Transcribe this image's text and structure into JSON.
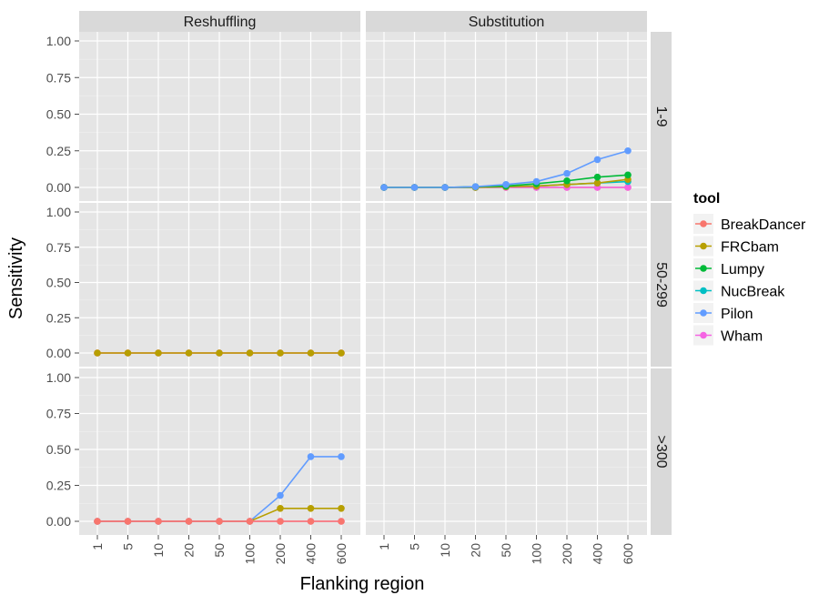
{
  "chart_data": {
    "type": "line",
    "facet_columns": [
      "Reshuffling",
      "Substitution"
    ],
    "facet_rows": [
      "1-9",
      "50-299",
      ">300"
    ],
    "categories": [
      "1",
      "5",
      "10",
      "20",
      "50",
      "100",
      "200",
      "400",
      "600"
    ],
    "xlabel": "Flanking region",
    "ylabel": "Sensitivity",
    "ylim": [
      0,
      1
    ],
    "yticks": [
      "0.00",
      "0.25",
      "0.50",
      "0.75",
      "1.00"
    ],
    "grid": true,
    "legend": {
      "title": "tool",
      "position": "right",
      "entries": [
        {
          "name": "BreakDancer",
          "color": "#F8766D"
        },
        {
          "name": "FRCbam",
          "color": "#B79F00"
        },
        {
          "name": "Lumpy",
          "color": "#00BA38"
        },
        {
          "name": "NucBreak",
          "color": "#00BFC4"
        },
        {
          "name": "Pilon",
          "color": "#619CFF"
        },
        {
          "name": "Wham",
          "color": "#F564E3"
        }
      ]
    },
    "panels": [
      {
        "row": "1-9",
        "col": "Substitution",
        "series": [
          {
            "name": "BreakDancer",
            "values": [
              0,
              0,
              0,
              0,
              0,
              0,
              0,
              0,
              0
            ]
          },
          {
            "name": "Wham",
            "values": [
              0,
              0,
              0,
              0,
              0,
              0,
              0,
              0,
              0
            ]
          },
          {
            "name": "NucBreak",
            "values": [
              0,
              0,
              0,
              0,
              0.005,
              0.01,
              0.02,
              0.03,
              0.04
            ]
          },
          {
            "name": "FRCbam",
            "values": [
              0,
              0,
              0,
              0,
              0.005,
              0.01,
              0.02,
              0.03,
              0.055
            ]
          },
          {
            "name": "Lumpy",
            "values": [
              0,
              0,
              0,
              0.005,
              0.01,
              0.025,
              0.045,
              0.07,
              0.085
            ]
          },
          {
            "name": "Pilon",
            "values": [
              0,
              0,
              0,
              0.005,
              0.02,
              0.04,
              0.095,
              0.19,
              0.25
            ]
          }
        ]
      },
      {
        "row": "50-299",
        "col": "Reshuffling",
        "series": [
          {
            "name": "Wham",
            "values": [
              0,
              0,
              0,
              0,
              0,
              0,
              0,
              0,
              0
            ]
          },
          {
            "name": "BreakDancer",
            "values": [
              0,
              0,
              0,
              0,
              0,
              0,
              0,
              0,
              0
            ]
          },
          {
            "name": "FRCbam",
            "values": [
              0,
              0,
              0,
              0,
              0,
              0,
              0,
              0,
              0
            ]
          }
        ]
      },
      {
        "row": ">300",
        "col": "Reshuffling",
        "series": [
          {
            "name": "Pilon",
            "values": [
              0,
              0,
              0,
              0,
              0,
              0,
              0.18,
              0.45,
              0.45
            ]
          },
          {
            "name": "FRCbam",
            "values": [
              0,
              0,
              0,
              0,
              0,
              0,
              0.09,
              0.09,
              0.09
            ]
          },
          {
            "name": "Wham",
            "values": [
              0,
              0,
              0,
              0,
              0,
              0,
              0,
              0,
              0
            ]
          },
          {
            "name": "BreakDancer",
            "values": [
              0,
              0,
              0,
              0,
              0,
              0,
              0,
              0,
              0
            ]
          }
        ]
      }
    ]
  }
}
